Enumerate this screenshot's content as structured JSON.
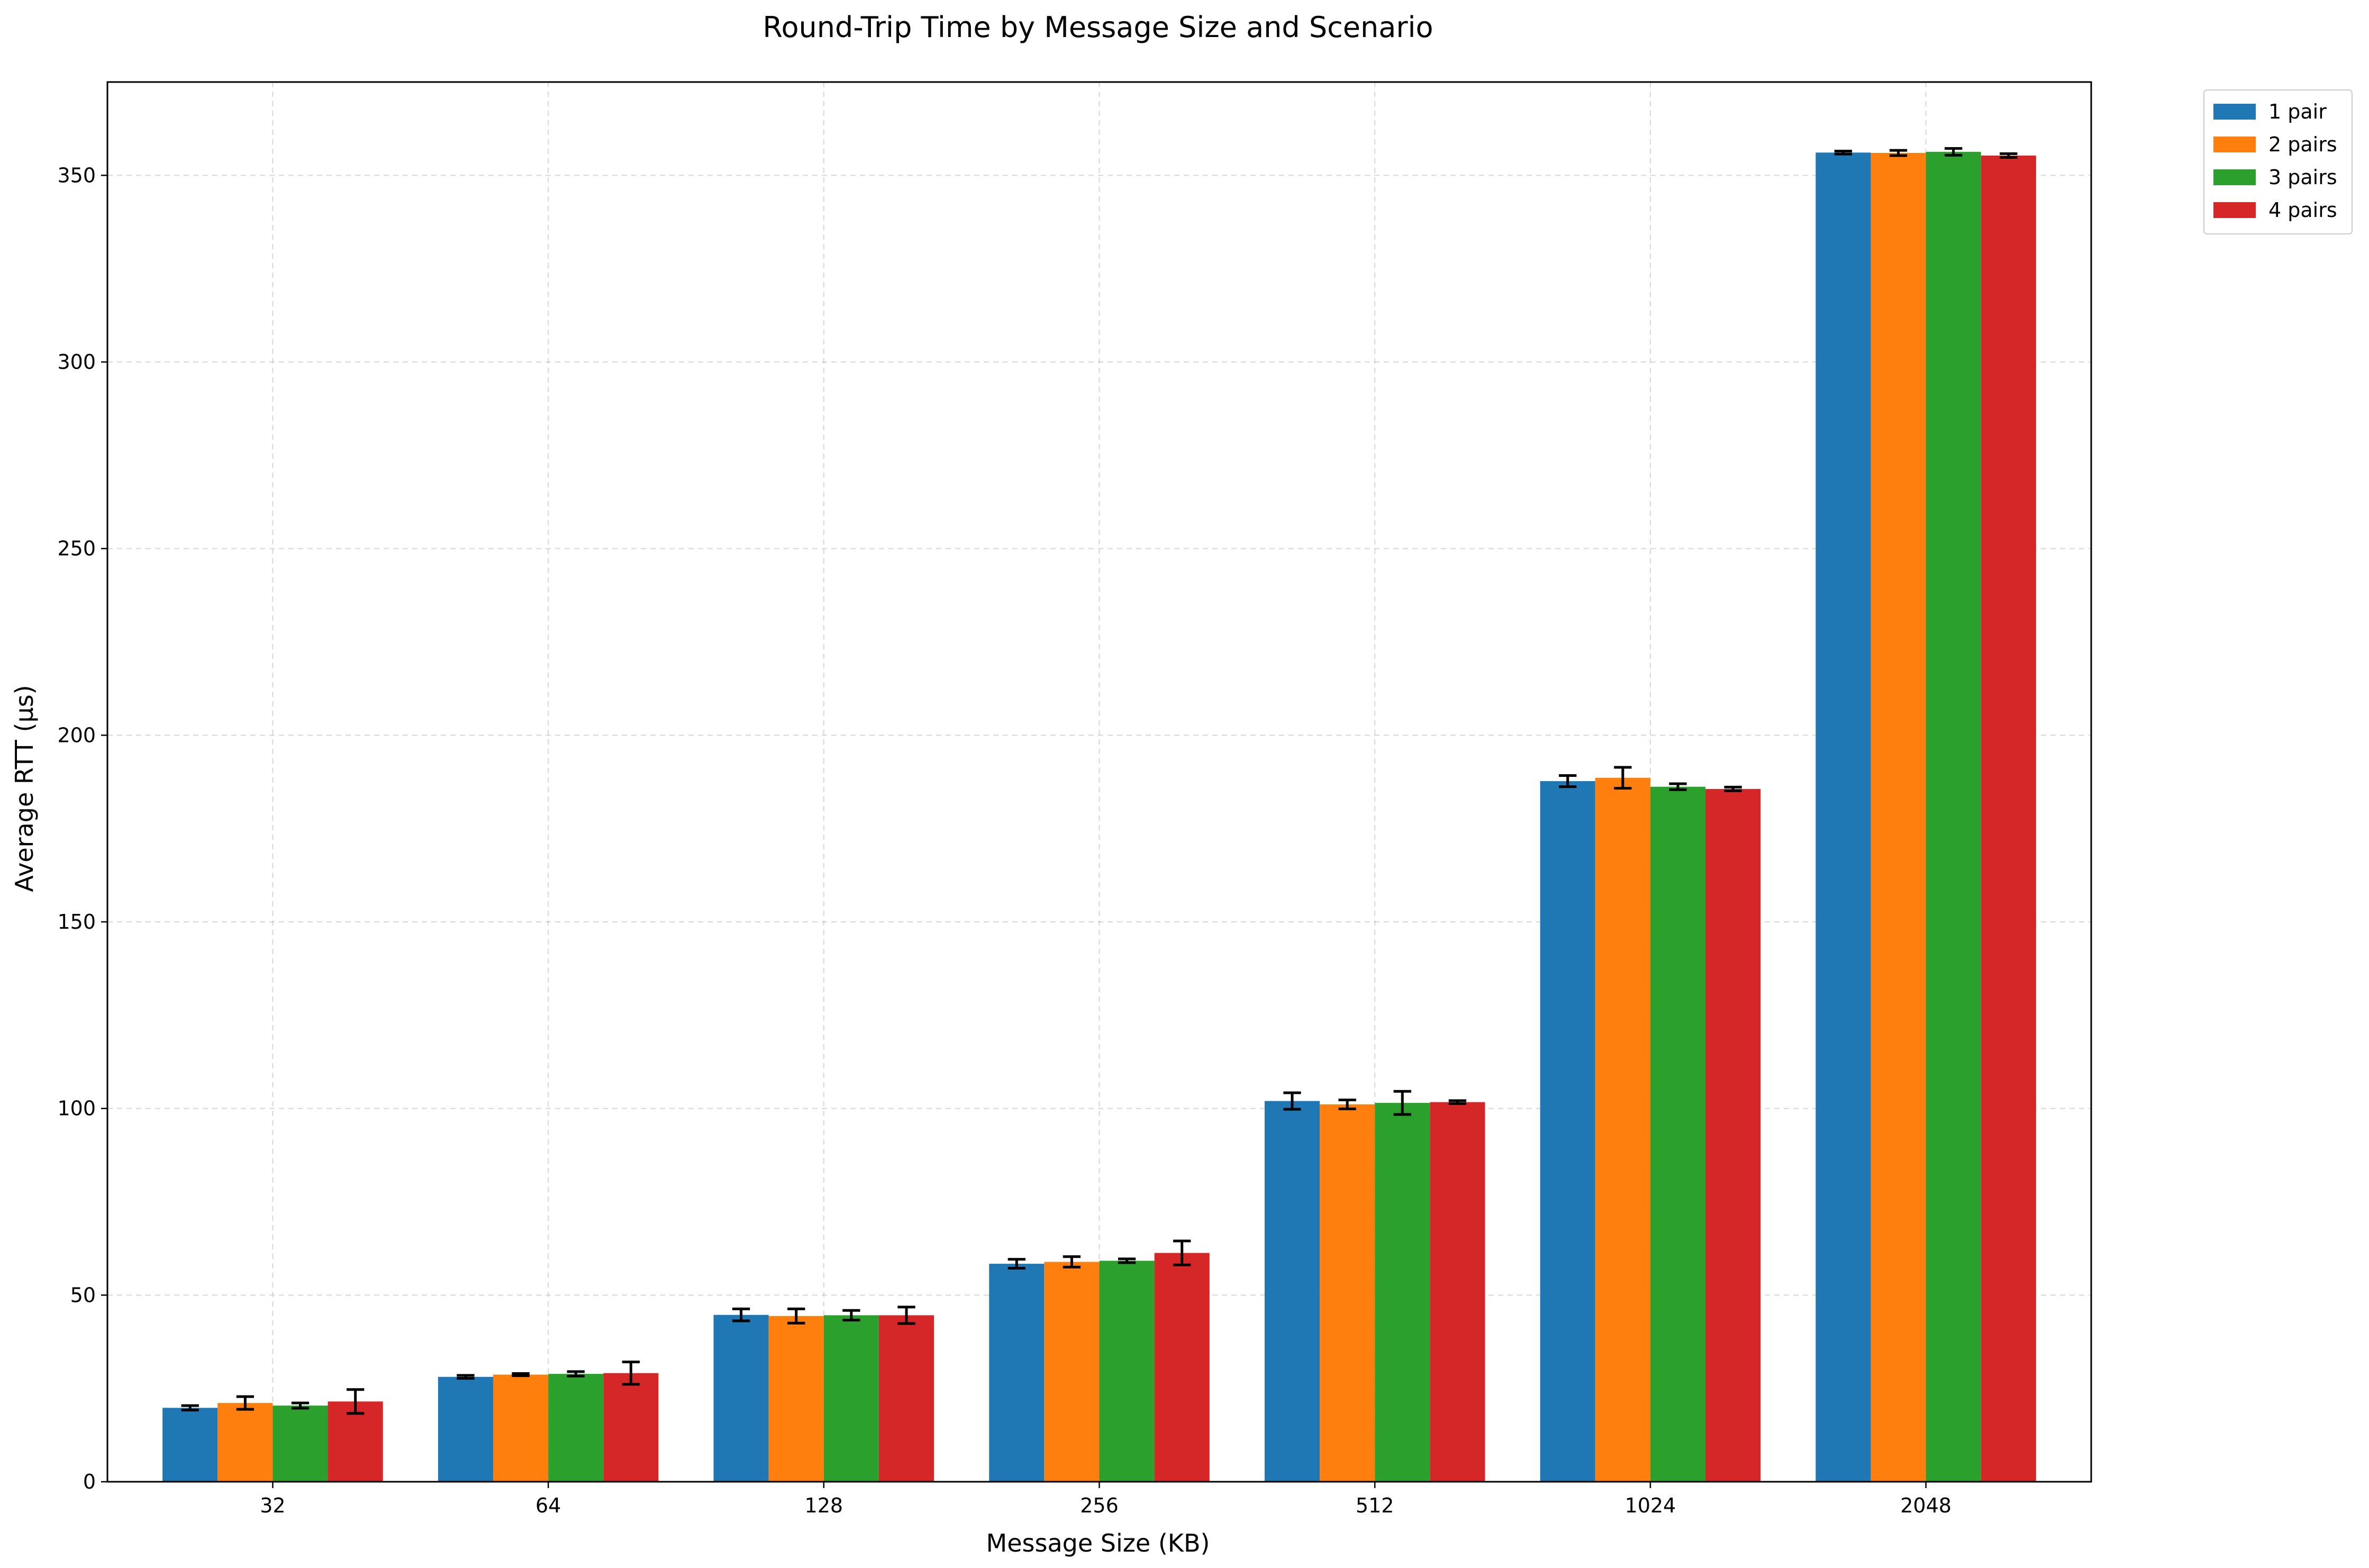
{
  "chart_data": {
    "type": "bar",
    "title": "Round-Trip Time by Message Size and Scenario",
    "xlabel": "Message Size (KB)",
    "ylabel": "Average RTT (µs)",
    "categories": [
      "32",
      "64",
      "128",
      "256",
      "512",
      "1024",
      "2048"
    ],
    "ylim": [
      0,
      375
    ],
    "yticks": [
      0,
      50,
      100,
      150,
      200,
      250,
      300,
      350
    ],
    "grid": true,
    "legend_position": "outside-top-right",
    "series": [
      {
        "name": "1 pair",
        "color": "#1f77b4",
        "values": [
          19.8,
          28.1,
          44.7,
          58.4,
          102.0,
          187.7,
          356.1
        ],
        "errors": [
          0.6,
          0.4,
          1.6,
          1.2,
          2.2,
          1.5,
          0.4
        ]
      },
      {
        "name": "2 pairs",
        "color": "#ff7f0e",
        "values": [
          21.1,
          28.7,
          44.4,
          58.9,
          101.1,
          188.6,
          356.0
        ],
        "errors": [
          1.7,
          0.3,
          1.9,
          1.4,
          1.2,
          2.8,
          0.7
        ]
      },
      {
        "name": "3 pairs",
        "color": "#2ca02c",
        "values": [
          20.4,
          28.9,
          44.6,
          59.2,
          101.5,
          186.2,
          356.3
        ],
        "errors": [
          0.7,
          0.6,
          1.3,
          0.5,
          3.1,
          0.8,
          0.9
        ]
      },
      {
        "name": "4 pairs",
        "color": "#d62728",
        "values": [
          21.5,
          29.1,
          44.6,
          61.3,
          101.7,
          185.6,
          355.3
        ],
        "errors": [
          3.2,
          3.0,
          2.2,
          3.2,
          0.4,
          0.5,
          0.5
        ]
      }
    ]
  }
}
